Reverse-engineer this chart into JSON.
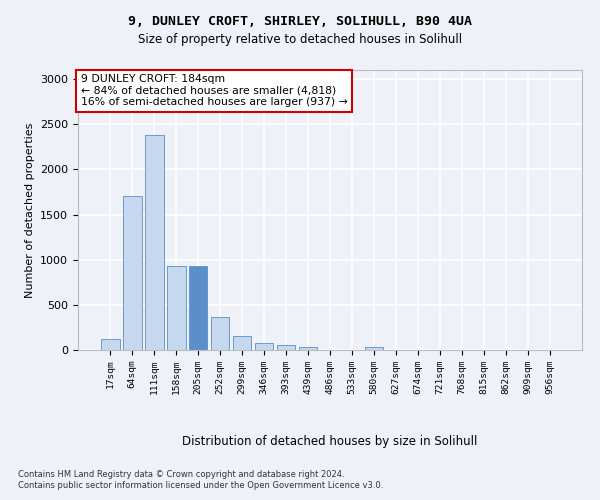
{
  "title_line1": "9, DUNLEY CROFT, SHIRLEY, SOLIHULL, B90 4UA",
  "title_line2": "Size of property relative to detached houses in Solihull",
  "xlabel": "Distribution of detached houses by size in Solihull",
  "ylabel": "Number of detached properties",
  "bar_color": "#c5d8ee",
  "bar_edge_color": "#5b8fc9",
  "annotation_box_text": "9 DUNLEY CROFT: 184sqm\n← 84% of detached houses are smaller (4,818)\n16% of semi-detached houses are larger (937) →",
  "annotation_box_color": "#ffffff",
  "annotation_box_edge_color": "#cc0000",
  "highlight_bar_index": 4,
  "highlight_bar_color": "#5b8fc9",
  "bins": [
    "17sqm",
    "64sqm",
    "111sqm",
    "158sqm",
    "205sqm",
    "252sqm",
    "299sqm",
    "346sqm",
    "393sqm",
    "439sqm",
    "486sqm",
    "533sqm",
    "580sqm",
    "627sqm",
    "674sqm",
    "721sqm",
    "768sqm",
    "815sqm",
    "862sqm",
    "909sqm",
    "956sqm"
  ],
  "values": [
    120,
    1700,
    2380,
    930,
    930,
    360,
    150,
    80,
    55,
    35,
    5,
    5,
    35,
    5,
    5,
    0,
    0,
    0,
    0,
    0,
    0
  ],
  "ylim": [
    0,
    3100
  ],
  "yticks": [
    0,
    500,
    1000,
    1500,
    2000,
    2500,
    3000
  ],
  "background_color": "#eef2f8",
  "plot_bg_color": "#eef2f8",
  "grid_color": "#ffffff",
  "footer_line1": "Contains HM Land Registry data © Crown copyright and database right 2024.",
  "footer_line2": "Contains public sector information licensed under the Open Government Licence v3.0."
}
